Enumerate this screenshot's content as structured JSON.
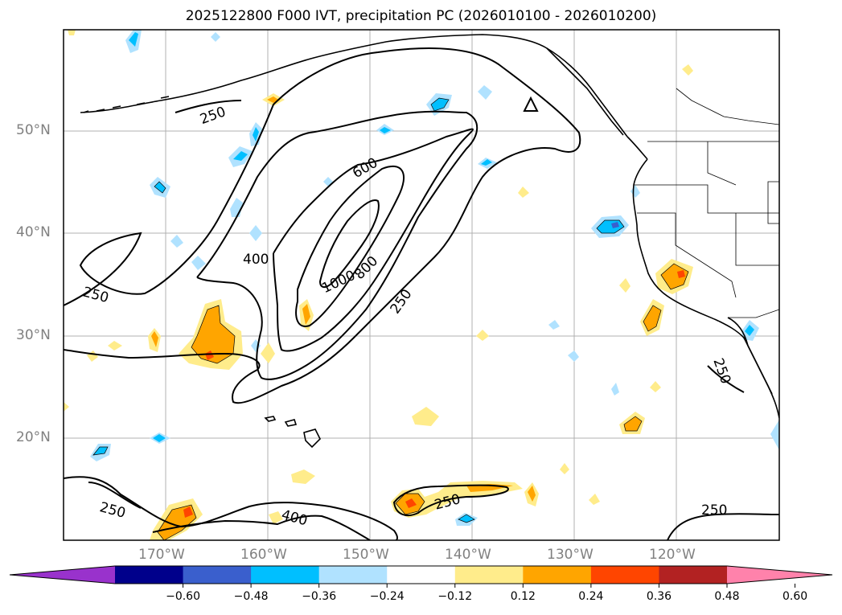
{
  "title": "2025122800 F000 IVT, precipitation PC (2026010100 - 2026010200)",
  "lat_labels": [
    "50°N",
    "40°N",
    "30°N",
    "20°N"
  ],
  "lon_labels": [
    "170°W",
    "160°W",
    "150°W",
    "140°W",
    "130°W",
    "120°W"
  ],
  "contour_labels": [
    "250",
    "600",
    "400",
    "1000",
    "800",
    "250",
    "250",
    "250",
    "250",
    "400",
    "250",
    "250"
  ],
  "colorbar": {
    "colors": [
      "#9932cc",
      "#00008b",
      "#3a5fcd",
      "#00bfff",
      "#b0e2ff",
      "#ffffff",
      "#ffec8b",
      "#ffa500",
      "#ff4500",
      "#b22222",
      "#ff82ab"
    ],
    "labels": [
      "−0.60",
      "−0.48",
      "−0.36",
      "−0.24",
      "−0.12",
      "0.12",
      "0.24",
      "0.36",
      "0.48",
      "0.60"
    ]
  }
}
